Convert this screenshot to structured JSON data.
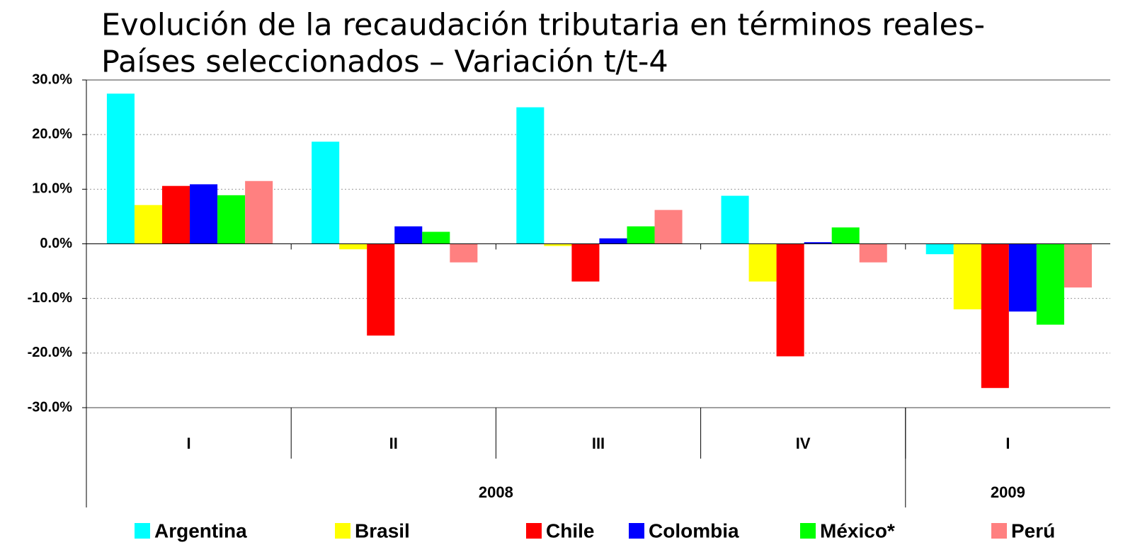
{
  "chart_data": {
    "type": "bar",
    "title": [
      "Evolución de la recaudación tributaria en términos reales-",
      "Países seleccionados – Variación t/t-4"
    ],
    "categories": [
      "I",
      "II",
      "III",
      "IV",
      "I"
    ],
    "x_groups": [
      {
        "label": "2008",
        "count": 4
      },
      {
        "label": "2009",
        "count": 1
      }
    ],
    "series": [
      {
        "name": "Argentina",
        "color": "#00ffff",
        "values": [
          27.5,
          18.7,
          25.0,
          8.8,
          -1.9
        ]
      },
      {
        "name": "Brasil",
        "color": "#ffff00",
        "values": [
          7.1,
          -1.0,
          -0.4,
          -6.9,
          -12.0
        ]
      },
      {
        "name": "Chile",
        "color": "#ff0000",
        "values": [
          10.6,
          -16.8,
          -6.9,
          -20.6,
          -26.4
        ]
      },
      {
        "name": "Colombia",
        "color": "#0000ff",
        "values": [
          10.9,
          3.2,
          1.0,
          0.3,
          -12.4
        ]
      },
      {
        "name": "México*",
        "color": "#00ff00",
        "values": [
          8.9,
          2.2,
          3.2,
          3.0,
          -14.8
        ]
      },
      {
        "name": "Perú",
        "color": "#ff8080",
        "values": [
          11.5,
          -3.4,
          6.2,
          -3.4,
          -8.0
        ]
      }
    ],
    "ylim": [
      -30,
      30
    ],
    "yticks": [
      {
        "value": -30,
        "label": "-30.0%"
      },
      {
        "value": -20,
        "label": "-20.0%"
      },
      {
        "value": -10,
        "label": "-10.0%"
      },
      {
        "value": 0,
        "label": "0.0%"
      },
      {
        "value": 10,
        "label": "10.0%"
      },
      {
        "value": 20,
        "label": "20.0%"
      },
      {
        "value": 30,
        "label": "30.0%"
      }
    ],
    "grid": true,
    "legend": "bottom"
  }
}
